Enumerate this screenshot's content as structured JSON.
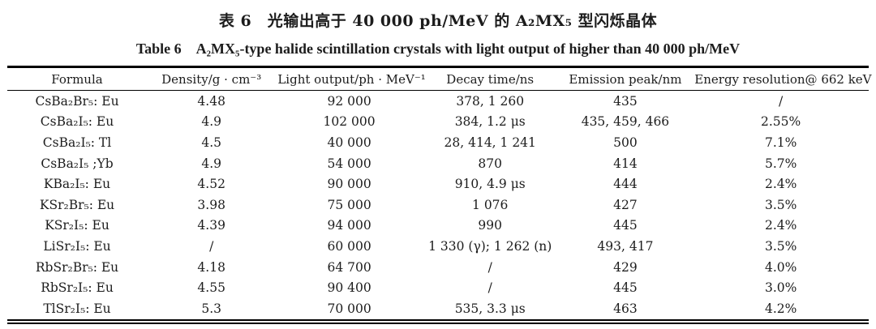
{
  "titles": {
    "chinese": "表 6　光输出高于 40 000 ph/MeV 的 A₂MX₅ 型闪烁晶体",
    "english": "Table 6　A₂MX₅-type halide scintillation crystals with light output of higher than 40 000 ph/MeV"
  },
  "chart_data": {
    "type": "table",
    "columns": [
      "Formula",
      "Density/g · cm⁻³",
      "Light output/ph · MeV⁻¹",
      "Decay time/ns",
      "Emission peak/nm",
      "Energy resolution@ 662 keV"
    ],
    "rows": [
      [
        "CsBa₂Br₅: Eu",
        "4.48",
        "92 000",
        "378, 1 260",
        "435",
        "/"
      ],
      [
        "CsBa₂I₅: Eu",
        "4.9",
        "102 000",
        "384, 1.2 μs",
        "435, 459, 466",
        "2.55%"
      ],
      [
        "CsBa₂I₅: Tl",
        "4.5",
        "40 000",
        "28, 414, 1 241",
        "500",
        "7.1%"
      ],
      [
        "CsBa₂I₅ ;Yb",
        "4.9",
        "54 000",
        "870",
        "414",
        "5.7%"
      ],
      [
        "KBa₂I₅: Eu",
        "4.52",
        "90 000",
        "910, 4.9 μs",
        "444",
        "2.4%"
      ],
      [
        "KSr₂Br₅: Eu",
        "3.98",
        "75 000",
        "1 076",
        "427",
        "3.5%"
      ],
      [
        "KSr₂I₅: Eu",
        "4.39",
        "94 000",
        "990",
        "445",
        "2.4%"
      ],
      [
        "LiSr₂I₅: Eu",
        "/",
        "60 000",
        "1 330 (γ); 1 262 (n)",
        "493, 417",
        "3.5%"
      ],
      [
        "RbSr₂Br₅: Eu",
        "4.18",
        "64 700",
        "/",
        "429",
        "4.0%"
      ],
      [
        "RbSr₂I₅: Eu",
        "4.55",
        "90 400",
        "/",
        "445",
        "3.0%"
      ],
      [
        "TlSr₂I₅: Eu",
        "5.3",
        "70 000",
        "535, 3.3 μs",
        "463",
        "4.2%"
      ]
    ]
  },
  "colors": {
    "text": "#1c1c1c",
    "rule": "#000000",
    "background": "#ffffff"
  }
}
